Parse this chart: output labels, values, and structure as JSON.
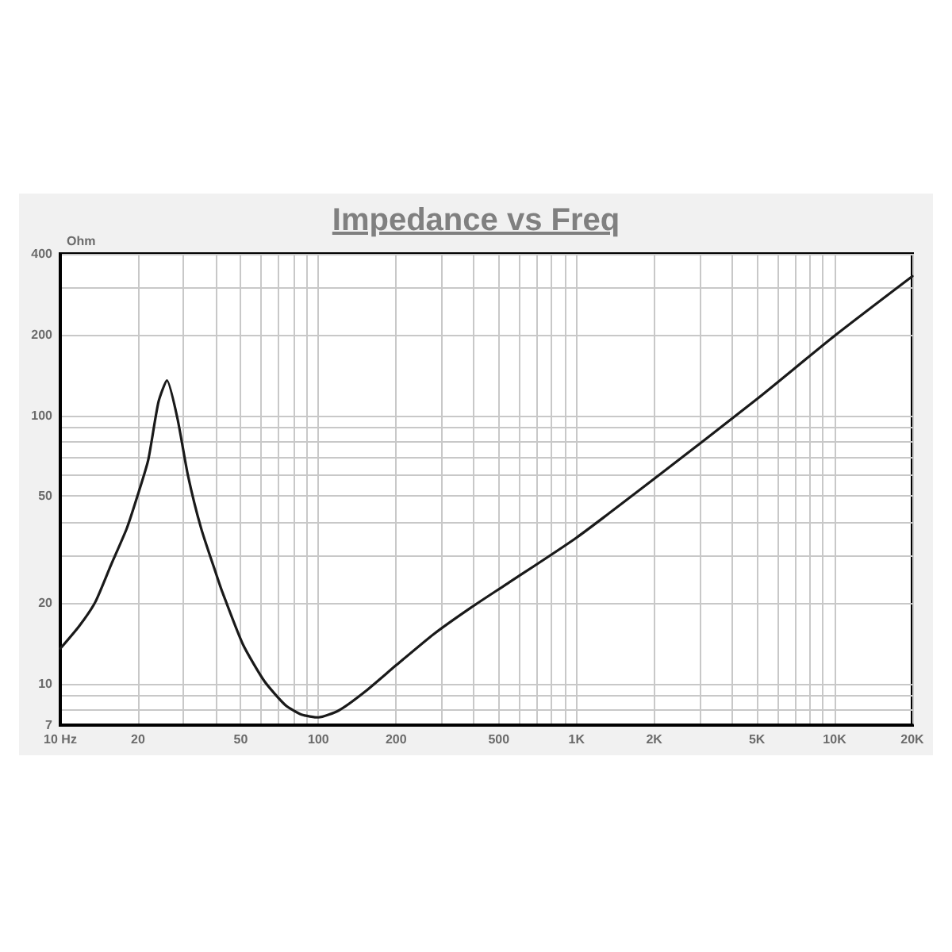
{
  "chart_data": {
    "type": "line",
    "title": "Impedance vs Freq",
    "ylabel": "Ohm",
    "x": [
      10,
      11.85,
      13.65,
      15.7,
      18.1,
      19.9,
      21.9,
      24,
      25.9,
      28.4,
      31.2,
      35.1,
      40.4,
      42.4,
      51,
      61.8,
      74.6,
      86,
      100,
      120,
      151,
      200,
      280,
      390,
      540,
      1000,
      2000,
      5000,
      10000,
      20000
    ],
    "series": [
      {
        "color": "#1a1a1a",
        "values": [
          13.5,
          16.4,
          20.1,
          27.6,
          37.9,
          50,
          68,
          112,
          135,
          98,
          60,
          38,
          25.2,
          22,
          14,
          10.2,
          8.3,
          7.66,
          7.48,
          7.94,
          9.3,
          11.7,
          15.3,
          19.2,
          23.6,
          35,
          58,
          115,
          198,
          330
        ]
      }
    ],
    "xlim": [
      10,
      20000
    ],
    "ylim": [
      7,
      400
    ],
    "xticks": [
      {
        "value": 10,
        "label": "10 Hz"
      },
      20,
      {
        "value": 30,
        "label": null
      },
      {
        "value": 40,
        "label": null
      },
      50,
      {
        "value": 60,
        "label": null
      },
      {
        "value": 70,
        "label": null
      },
      {
        "value": 80,
        "label": null
      },
      {
        "value": 90,
        "label": null
      },
      100,
      200,
      {
        "value": 300,
        "label": null
      },
      {
        "value": 400,
        "label": null
      },
      500,
      {
        "value": 600,
        "label": null
      },
      {
        "value": 700,
        "label": null
      },
      {
        "value": 800,
        "label": null
      },
      {
        "value": 900,
        "label": null
      },
      {
        "value": 1000,
        "label": "1K"
      },
      {
        "value": 2000,
        "label": "2K"
      },
      {
        "value": 3000,
        "label": null
      },
      {
        "value": 4000,
        "label": null
      },
      {
        "value": 5000,
        "label": "5K"
      },
      {
        "value": 6000,
        "label": null
      },
      {
        "value": 7000,
        "label": null
      },
      {
        "value": 8000,
        "label": null
      },
      {
        "value": 9000,
        "label": null
      },
      {
        "value": 10000,
        "label": "10K"
      },
      {
        "value": 20000,
        "label": "20K"
      }
    ],
    "yticks": [
      7,
      {
        "value": 8,
        "label": null
      },
      {
        "value": 9,
        "label": null
      },
      10,
      20,
      {
        "value": 30,
        "label": null
      },
      {
        "value": 40,
        "label": null
      },
      50,
      {
        "value": 60,
        "label": null
      },
      {
        "value": 70,
        "label": null
      },
      {
        "value": 80,
        "label": null
      },
      {
        "value": 90,
        "label": null
      },
      100,
      200,
      {
        "value": 300,
        "label": null
      },
      400
    ],
    "log": "xy",
    "grid": true
  }
}
